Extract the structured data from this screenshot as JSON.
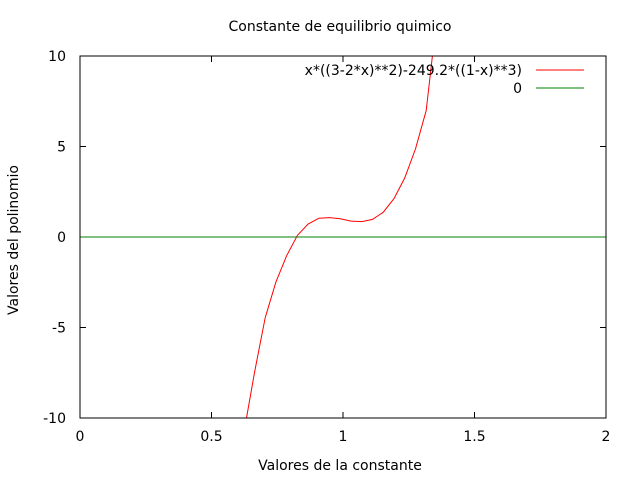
{
  "chart_data": {
    "type": "line",
    "title": "Constante de equilibrio quimico",
    "xlabel": "Valores de la constante",
    "ylabel": "Valores del polinomio",
    "xlim": [
      0,
      2
    ],
    "ylim": [
      -10,
      10
    ],
    "xticks": [
      0,
      0.5,
      1,
      1.5,
      2
    ],
    "xtick_labels": [
      "0",
      "0.5",
      "1",
      "1.5",
      "2"
    ],
    "yticks": [
      -10,
      -5,
      0,
      5,
      10
    ],
    "ytick_labels": [
      "-10",
      "-5",
      "0",
      "5",
      "10"
    ],
    "grid": false,
    "legend_position": "top-right",
    "series": [
      {
        "name": "x*((3-2*x)**2)-249.2*((1-x)**3)",
        "color": "#ff0000",
        "x": [
          0.633,
          0.6633,
          0.7041,
          0.7449,
          0.7857,
          0.8265,
          0.8673,
          0.9082,
          0.949,
          0.9898,
          1.0306,
          1.0714,
          1.1122,
          1.1531,
          1.1939,
          1.2347,
          1.2755,
          1.3163,
          1.34
        ],
        "values": [
          -10,
          -7.52,
          -4.46,
          -2.49,
          -1.04,
          0.09,
          0.72,
          1.04,
          1.07,
          1.01,
          0.88,
          0.85,
          0.97,
          1.37,
          2.12,
          3.26,
          4.87,
          6.99,
          10
        ]
      },
      {
        "name": "0",
        "color": "#008000",
        "x": [
          0,
          2
        ],
        "values": [
          0,
          0
        ]
      }
    ]
  }
}
